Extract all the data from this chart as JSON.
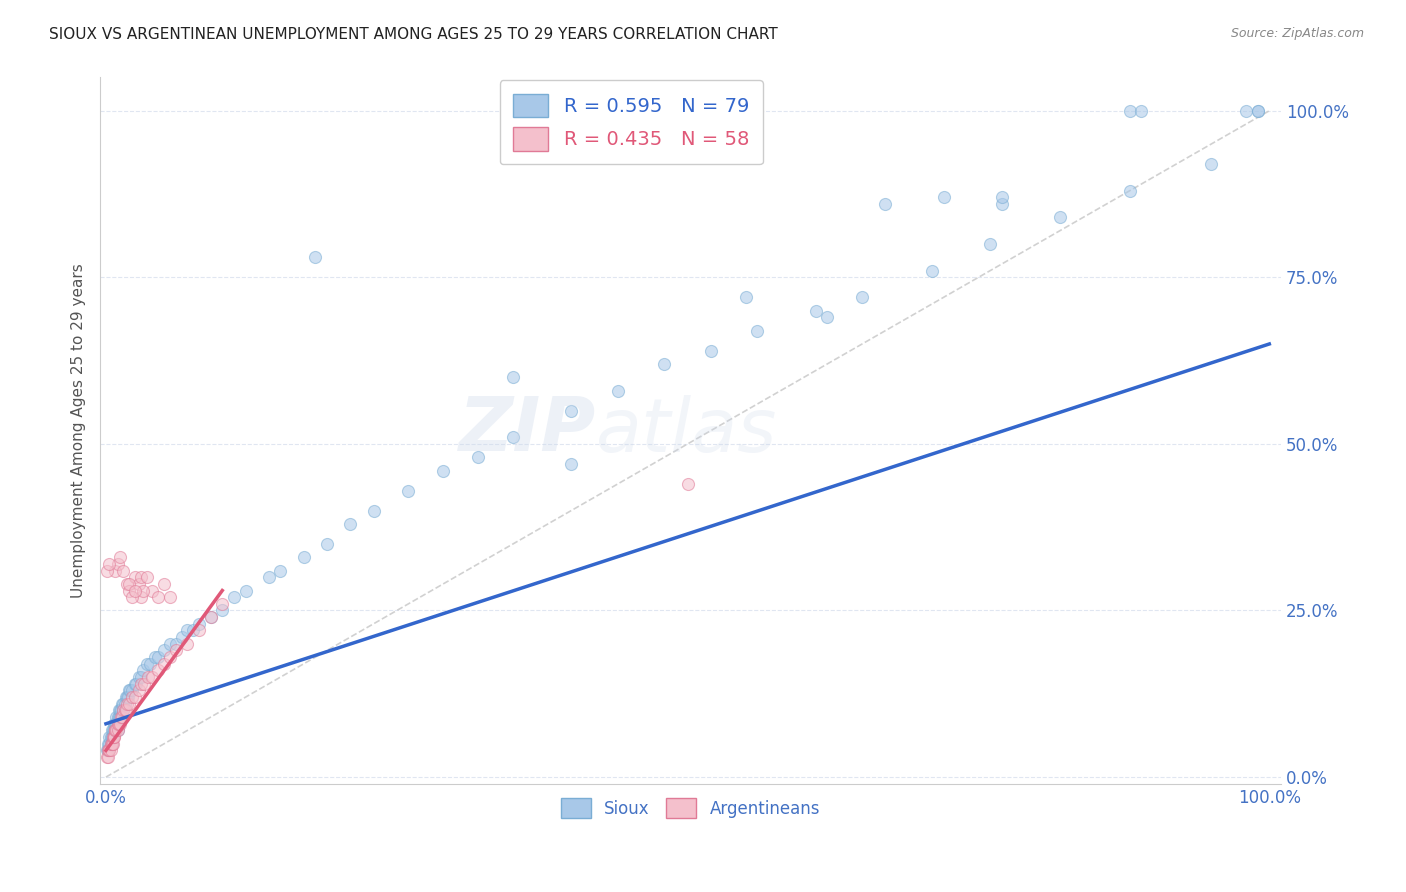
{
  "title": "SIOUX VS ARGENTINEAN UNEMPLOYMENT AMONG AGES 25 TO 29 YEARS CORRELATION CHART",
  "source": "Source: ZipAtlas.com",
  "ylabel": "Unemployment Among Ages 25 to 29 years",
  "ytick_labels": [
    "0.0%",
    "25.0%",
    "50.0%",
    "75.0%",
    "100.0%"
  ],
  "xtick_labels_bottom": [
    "0.0%",
    "100.0%"
  ],
  "xtick_positions_bottom": [
    0.0,
    1.0
  ],
  "ytick_positions": [
    0.0,
    0.25,
    0.5,
    0.75,
    1.0
  ],
  "watermark_zip": "ZIP",
  "watermark_atlas": "atlas",
  "sioux_color": "#a8c8e8",
  "sioux_edge_color": "#7aadd4",
  "argentinean_color": "#f4c0cc",
  "argentinean_edge_color": "#e07a96",
  "trendline_sioux_color": "#3366cc",
  "trendline_arg_color": "#e05878",
  "diagonal_color": "#cccccc",
  "background_color": "#ffffff",
  "grid_color": "#dde4f0",
  "marker_size": 75,
  "marker_alpha": 0.55,
  "sioux_x": [
    0.001,
    0.002,
    0.002,
    0.003,
    0.003,
    0.004,
    0.004,
    0.005,
    0.005,
    0.005,
    0.006,
    0.006,
    0.007,
    0.007,
    0.008,
    0.008,
    0.009,
    0.009,
    0.01,
    0.01,
    0.01,
    0.011,
    0.011,
    0.012,
    0.012,
    0.013,
    0.014,
    0.015,
    0.015,
    0.016,
    0.017,
    0.018,
    0.019,
    0.02,
    0.021,
    0.022,
    0.025,
    0.026,
    0.028,
    0.03,
    0.032,
    0.035,
    0.038,
    0.042,
    0.045,
    0.05,
    0.055,
    0.06,
    0.065,
    0.07,
    0.075,
    0.08,
    0.09,
    0.1,
    0.11,
    0.12,
    0.14,
    0.15,
    0.17,
    0.19,
    0.21,
    0.23,
    0.26,
    0.29,
    0.32,
    0.35,
    0.4,
    0.44,
    0.48,
    0.52,
    0.56,
    0.61,
    0.65,
    0.71,
    0.76,
    0.82,
    0.88,
    0.95,
    0.99
  ],
  "sioux_y": [
    0.04,
    0.04,
    0.05,
    0.05,
    0.06,
    0.06,
    0.05,
    0.05,
    0.06,
    0.07,
    0.06,
    0.07,
    0.07,
    0.08,
    0.07,
    0.08,
    0.08,
    0.09,
    0.07,
    0.08,
    0.09,
    0.09,
    0.1,
    0.09,
    0.1,
    0.1,
    0.11,
    0.1,
    0.11,
    0.11,
    0.12,
    0.12,
    0.12,
    0.13,
    0.13,
    0.13,
    0.14,
    0.14,
    0.15,
    0.15,
    0.16,
    0.17,
    0.17,
    0.18,
    0.18,
    0.19,
    0.2,
    0.2,
    0.21,
    0.22,
    0.22,
    0.23,
    0.24,
    0.25,
    0.27,
    0.28,
    0.3,
    0.31,
    0.33,
    0.35,
    0.38,
    0.4,
    0.43,
    0.46,
    0.48,
    0.51,
    0.55,
    0.58,
    0.62,
    0.64,
    0.67,
    0.7,
    0.72,
    0.76,
    0.8,
    0.84,
    0.88,
    0.92,
    1.0
  ],
  "sioux_outliers_x": [
    0.18,
    0.55,
    0.62,
    0.67,
    0.72,
    0.77,
    0.77,
    0.88,
    0.89,
    0.98,
    0.99,
    0.35,
    0.4
  ],
  "sioux_outliers_y": [
    0.78,
    0.72,
    0.69,
    0.86,
    0.87,
    0.86,
    0.87,
    1.0,
    1.0,
    1.0,
    1.0,
    0.6,
    0.47
  ],
  "arg_x": [
    0.001,
    0.002,
    0.002,
    0.003,
    0.003,
    0.004,
    0.004,
    0.005,
    0.005,
    0.006,
    0.006,
    0.007,
    0.007,
    0.008,
    0.008,
    0.009,
    0.01,
    0.01,
    0.011,
    0.012,
    0.013,
    0.014,
    0.015,
    0.016,
    0.017,
    0.018,
    0.02,
    0.022,
    0.025,
    0.028,
    0.03,
    0.033,
    0.036,
    0.04,
    0.045,
    0.05,
    0.055,
    0.06,
    0.07,
    0.08,
    0.09,
    0.1,
    0.03,
    0.04,
    0.05,
    0.055,
    0.008,
    0.01,
    0.012,
    0.015,
    0.018,
    0.02,
    0.022,
    0.025,
    0.028,
    0.03,
    0.032,
    0.035
  ],
  "arg_y": [
    0.03,
    0.03,
    0.04,
    0.04,
    0.04,
    0.04,
    0.05,
    0.05,
    0.05,
    0.05,
    0.06,
    0.06,
    0.06,
    0.07,
    0.07,
    0.07,
    0.07,
    0.08,
    0.08,
    0.08,
    0.09,
    0.09,
    0.1,
    0.1,
    0.1,
    0.11,
    0.11,
    0.12,
    0.12,
    0.13,
    0.14,
    0.14,
    0.15,
    0.15,
    0.16,
    0.17,
    0.18,
    0.19,
    0.2,
    0.22,
    0.24,
    0.26,
    0.27,
    0.28,
    0.29,
    0.27,
    0.31,
    0.32,
    0.33,
    0.31,
    0.29,
    0.28,
    0.27,
    0.3,
    0.29,
    0.3,
    0.28,
    0.3
  ],
  "arg_outliers_x": [
    0.001,
    0.003,
    0.02,
    0.025,
    0.045,
    0.5
  ],
  "arg_outliers_y": [
    0.31,
    0.32,
    0.29,
    0.28,
    0.27,
    0.44
  ]
}
